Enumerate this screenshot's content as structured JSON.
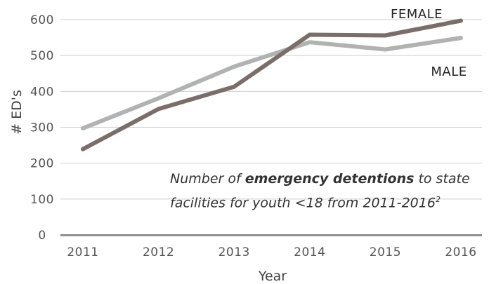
{
  "chart_data": {
    "type": "line",
    "x": [
      "2011",
      "2012",
      "2013",
      "2014",
      "2015",
      "2016"
    ],
    "series": [
      {
        "name": "MALE",
        "values": [
          297,
          381,
          469,
          537,
          517,
          549
        ],
        "color": "#b0b3b1"
      },
      {
        "name": "FEMALE",
        "values": [
          239,
          351,
          413,
          558,
          556,
          597
        ],
        "color": "#7a6e6b"
      }
    ],
    "xlabel": "Year",
    "ylabel": "# ED's",
    "ylim": [
      0,
      600
    ],
    "yticks": [
      0,
      100,
      200,
      300,
      400,
      500,
      600
    ],
    "grid": true,
    "annotation": {
      "part1": "Number of ",
      "bold": "emergency detentions",
      "part2": " to state",
      "line2": "facilities for youth <18  from 2011-2016",
      "superscript": "2"
    }
  }
}
